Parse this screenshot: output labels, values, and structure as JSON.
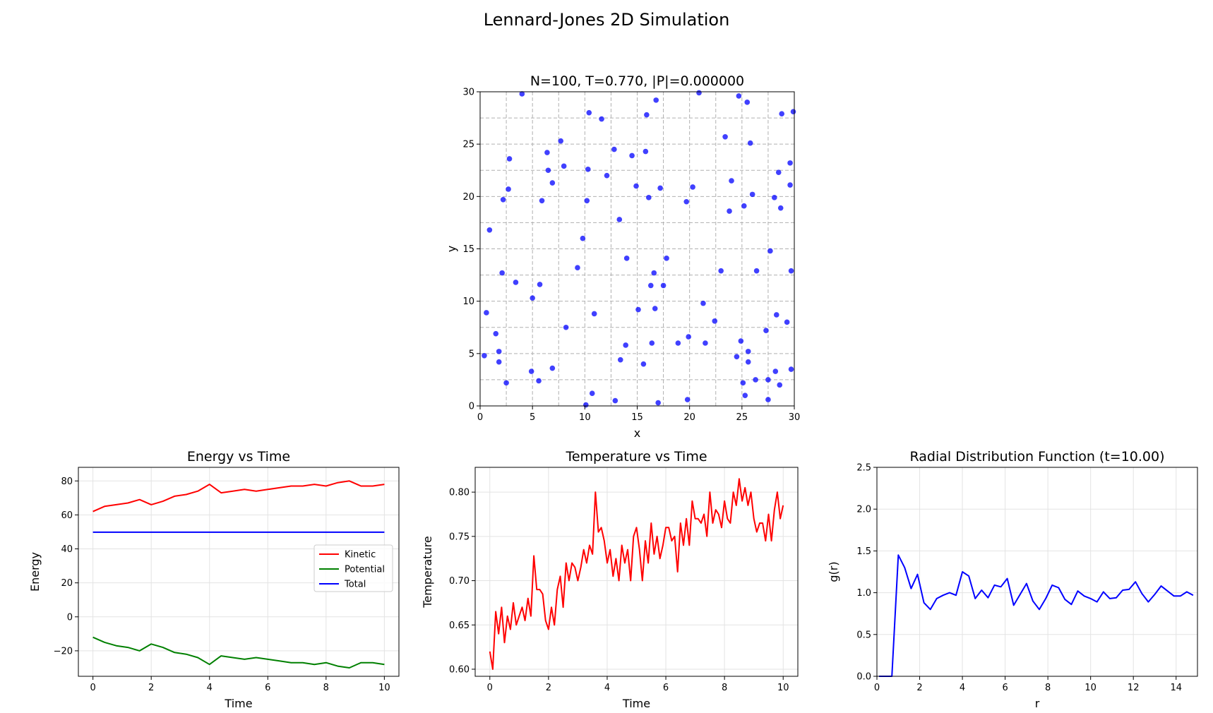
{
  "figure": {
    "suptitle": "Lennard-Jones 2D Simulation"
  },
  "chart_data": [
    {
      "type": "scatter",
      "title": "N=100, T=0.770, |P|=0.000000",
      "xlabel": "x",
      "ylabel": "y",
      "xlim": [
        0,
        30
      ],
      "ylim": [
        0,
        30
      ],
      "xticks": [
        0,
        5,
        10,
        15,
        20,
        25,
        30
      ],
      "yticks": [
        0,
        5,
        10,
        15,
        20,
        25,
        30
      ],
      "grid": "dashed at 2.5 intervals",
      "marker_color": "#0000ff",
      "points": [
        [
          0.4,
          4.8
        ],
        [
          0.6,
          8.9
        ],
        [
          0.9,
          16.8
        ],
        [
          1.5,
          6.9
        ],
        [
          1.8,
          5.2
        ],
        [
          1.8,
          4.2
        ],
        [
          2.1,
          12.7
        ],
        [
          2.2,
          19.7
        ],
        [
          2.5,
          2.2
        ],
        [
          2.7,
          20.7
        ],
        [
          2.8,
          23.6
        ],
        [
          3.4,
          11.8
        ],
        [
          4.0,
          29.8
        ],
        [
          4.9,
          3.3
        ],
        [
          5.0,
          10.3
        ],
        [
          5.6,
          2.4
        ],
        [
          5.7,
          11.6
        ],
        [
          5.9,
          19.6
        ],
        [
          6.4,
          24.2
        ],
        [
          6.5,
          22.5
        ],
        [
          6.9,
          3.6
        ],
        [
          6.9,
          21.3
        ],
        [
          7.7,
          25.3
        ],
        [
          8.0,
          22.9
        ],
        [
          8.2,
          7.5
        ],
        [
          9.3,
          13.2
        ],
        [
          9.8,
          16.0
        ],
        [
          10.1,
          0.1
        ],
        [
          10.3,
          22.6
        ],
        [
          10.2,
          19.6
        ],
        [
          10.4,
          28.0
        ],
        [
          10.7,
          1.2
        ],
        [
          10.9,
          8.8
        ],
        [
          11.6,
          27.4
        ],
        [
          12.1,
          22.0
        ],
        [
          12.8,
          24.5
        ],
        [
          12.9,
          0.5
        ],
        [
          13.3,
          17.8
        ],
        [
          13.4,
          4.4
        ],
        [
          13.9,
          5.8
        ],
        [
          14.0,
          14.1
        ],
        [
          14.5,
          23.9
        ],
        [
          14.9,
          21.0
        ],
        [
          15.1,
          9.2
        ],
        [
          15.6,
          4.0
        ],
        [
          15.8,
          24.3
        ],
        [
          15.9,
          27.8
        ],
        [
          16.1,
          19.9
        ],
        [
          16.3,
          11.5
        ],
        [
          16.4,
          6.0
        ],
        [
          16.6,
          12.7
        ],
        [
          16.7,
          9.3
        ],
        [
          16.8,
          29.2
        ],
        [
          17.0,
          0.3
        ],
        [
          17.2,
          20.8
        ],
        [
          17.5,
          11.5
        ],
        [
          17.8,
          14.1
        ],
        [
          18.9,
          6.0
        ],
        [
          19.7,
          19.5
        ],
        [
          19.8,
          0.6
        ],
        [
          19.9,
          6.6
        ],
        [
          20.3,
          20.9
        ],
        [
          20.9,
          29.9
        ],
        [
          21.3,
          9.8
        ],
        [
          21.5,
          6.0
        ],
        [
          22.4,
          8.1
        ],
        [
          23.0,
          12.9
        ],
        [
          23.4,
          25.7
        ],
        [
          23.8,
          18.6
        ],
        [
          24.0,
          21.5
        ],
        [
          24.5,
          4.7
        ],
        [
          24.7,
          29.6
        ],
        [
          24.9,
          6.2
        ],
        [
          25.1,
          2.2
        ],
        [
          25.2,
          19.1
        ],
        [
          25.3,
          1.0
        ],
        [
          25.5,
          29.0
        ],
        [
          25.6,
          5.2
        ],
        [
          25.6,
          4.2
        ],
        [
          25.8,
          25.1
        ],
        [
          26.0,
          20.2
        ],
        [
          26.3,
          2.5
        ],
        [
          26.4,
          12.9
        ],
        [
          27.3,
          7.2
        ],
        [
          27.5,
          2.5
        ],
        [
          27.5,
          0.6
        ],
        [
          27.7,
          14.8
        ],
        [
          28.1,
          19.9
        ],
        [
          28.2,
          3.3
        ],
        [
          28.3,
          8.7
        ],
        [
          28.5,
          22.3
        ],
        [
          28.6,
          2.0
        ],
        [
          28.7,
          18.9
        ],
        [
          28.8,
          27.9
        ],
        [
          29.3,
          8.0
        ],
        [
          29.6,
          21.1
        ],
        [
          29.6,
          23.2
        ],
        [
          29.7,
          3.5
        ],
        [
          29.7,
          12.9
        ],
        [
          29.9,
          28.1
        ]
      ]
    },
    {
      "type": "line",
      "title": "Energy vs Time",
      "xlabel": "Time",
      "ylabel": "Energy",
      "xlim": [
        -0.5,
        10.5
      ],
      "ylim": [
        -35,
        88
      ],
      "xticks": [
        0,
        2,
        4,
        6,
        8,
        10
      ],
      "yticks": [
        -20,
        0,
        20,
        40,
        60,
        80
      ],
      "ytick_labels": [
        "−20",
        "0",
        "20",
        "40",
        "60",
        "80"
      ],
      "grid": true,
      "legend": "center-right",
      "x": [
        0,
        0.4,
        0.8,
        1.2,
        1.6,
        2.0,
        2.4,
        2.8,
        3.2,
        3.6,
        4.0,
        4.4,
        4.8,
        5.2,
        5.6,
        6.0,
        6.4,
        6.8,
        7.2,
        7.6,
        8.0,
        8.4,
        8.8,
        9.2,
        9.6,
        10.0
      ],
      "series": [
        {
          "name": "Kinetic",
          "color": "#ff0000",
          "values": [
            62,
            65,
            66,
            67,
            69,
            66,
            68,
            71,
            72,
            74,
            78,
            73,
            74,
            75,
            74,
            75,
            76,
            77,
            77,
            78,
            77,
            79,
            80,
            77,
            77,
            78
          ]
        },
        {
          "name": "Potential",
          "color": "#008000",
          "values": [
            -12,
            -15,
            -17,
            -18,
            -20,
            -16,
            -18,
            -21,
            -22,
            -24,
            -28,
            -23,
            -24,
            -25,
            -24,
            -25,
            -26,
            -27,
            -27,
            -28,
            -27,
            -29,
            -30,
            -27,
            -27,
            -28
          ]
        },
        {
          "name": "Total",
          "color": "#0000ff",
          "values": [
            49.8,
            49.8,
            49.8,
            49.8,
            49.8,
            49.8,
            49.8,
            49.8,
            49.8,
            49.8,
            49.8,
            49.8,
            49.8,
            49.8,
            49.8,
            49.8,
            49.8,
            49.8,
            49.8,
            49.8,
            49.8,
            49.8,
            49.8,
            49.8,
            49.8,
            49.8
          ]
        }
      ]
    },
    {
      "type": "line",
      "title": "Temperature vs Time",
      "xlabel": "Time",
      "ylabel": "Temperature",
      "xlim": [
        -0.5,
        10.5
      ],
      "ylim": [
        0.592,
        0.828
      ],
      "xticks": [
        0,
        2,
        4,
        6,
        8,
        10
      ],
      "yticks": [
        0.6,
        0.65,
        0.7,
        0.75,
        0.8
      ],
      "ytick_labels": [
        "0.60",
        "0.65",
        "0.70",
        "0.75",
        "0.80"
      ],
      "grid": true,
      "x": [
        0,
        0.1,
        0.2,
        0.3,
        0.4,
        0.5,
        0.6,
        0.7,
        0.8,
        0.9,
        1.0,
        1.1,
        1.2,
        1.3,
        1.4,
        1.5,
        1.6,
        1.7,
        1.8,
        1.9,
        2.0,
        2.1,
        2.2,
        2.3,
        2.4,
        2.5,
        2.6,
        2.7,
        2.8,
        2.9,
        3.0,
        3.1,
        3.2,
        3.3,
        3.4,
        3.5,
        3.6,
        3.7,
        3.8,
        3.9,
        4.0,
        4.1,
        4.2,
        4.3,
        4.4,
        4.5,
        4.6,
        4.7,
        4.8,
        4.9,
        5.0,
        5.1,
        5.2,
        5.3,
        5.4,
        5.5,
        5.6,
        5.7,
        5.8,
        5.9,
        6.0,
        6.1,
        6.2,
        6.3,
        6.4,
        6.5,
        6.6,
        6.7,
        6.8,
        6.9,
        7.0,
        7.1,
        7.2,
        7.3,
        7.4,
        7.5,
        7.6,
        7.7,
        7.8,
        7.9,
        8.0,
        8.1,
        8.2,
        8.3,
        8.4,
        8.5,
        8.6,
        8.7,
        8.8,
        8.9,
        9.0,
        9.1,
        9.2,
        9.3,
        9.4,
        9.5,
        9.6,
        9.7,
        9.8,
        9.9,
        10.0
      ],
      "series": [
        {
          "name": "",
          "color": "#ff0000",
          "values": [
            0.62,
            0.6,
            0.665,
            0.64,
            0.67,
            0.63,
            0.66,
            0.645,
            0.675,
            0.65,
            0.66,
            0.67,
            0.655,
            0.68,
            0.66,
            0.728,
            0.69,
            0.69,
            0.685,
            0.655,
            0.645,
            0.67,
            0.65,
            0.69,
            0.705,
            0.67,
            0.72,
            0.7,
            0.72,
            0.715,
            0.7,
            0.715,
            0.735,
            0.72,
            0.74,
            0.73,
            0.8,
            0.755,
            0.76,
            0.745,
            0.72,
            0.735,
            0.705,
            0.725,
            0.7,
            0.74,
            0.72,
            0.735,
            0.7,
            0.75,
            0.76,
            0.735,
            0.7,
            0.745,
            0.72,
            0.765,
            0.73,
            0.75,
            0.725,
            0.74,
            0.76,
            0.76,
            0.745,
            0.75,
            0.71,
            0.765,
            0.74,
            0.77,
            0.74,
            0.79,
            0.77,
            0.77,
            0.765,
            0.775,
            0.75,
            0.8,
            0.765,
            0.78,
            0.775,
            0.76,
            0.79,
            0.77,
            0.765,
            0.8,
            0.785,
            0.815,
            0.79,
            0.805,
            0.785,
            0.8,
            0.77,
            0.755,
            0.765,
            0.765,
            0.745,
            0.775,
            0.745,
            0.78,
            0.8,
            0.77,
            0.785
          ]
        }
      ]
    },
    {
      "type": "line",
      "title": "Radial Distribution Function (t=10.00)",
      "xlabel": "r",
      "ylabel": "g(r)",
      "xlim": [
        0,
        15
      ],
      "ylim": [
        0,
        2.5
      ],
      "xticks": [
        0,
        2,
        4,
        6,
        8,
        10,
        12,
        14
      ],
      "yticks": [
        0,
        0.5,
        1.0,
        1.5,
        2.0,
        2.5
      ],
      "ytick_labels": [
        "0.0",
        "0.5",
        "1.0",
        "1.5",
        "2.0",
        "2.5"
      ],
      "grid": true,
      "x": [
        0.1,
        0.4,
        0.7,
        1.0,
        1.3,
        1.6,
        1.9,
        2.2,
        2.5,
        2.8,
        3.1,
        3.4,
        3.7,
        4.0,
        4.3,
        4.6,
        4.9,
        5.2,
        5.5,
        5.8,
        6.1,
        6.4,
        6.7,
        7.0,
        7.3,
        7.6,
        7.9,
        8.2,
        8.5,
        8.8,
        9.1,
        9.4,
        9.7,
        10.0,
        10.3,
        10.6,
        10.9,
        11.2,
        11.5,
        11.8,
        12.1,
        12.4,
        12.7,
        13.0,
        13.3,
        13.6,
        13.9,
        14.2,
        14.5,
        14.8
      ],
      "series": [
        {
          "name": "",
          "color": "#0000ff",
          "values": [
            0,
            0,
            0,
            1.45,
            1.3,
            1.05,
            1.22,
            0.88,
            0.8,
            0.93,
            0.97,
            1.0,
            0.97,
            1.25,
            1.2,
            0.93,
            1.03,
            0.94,
            1.09,
            1.07,
            1.17,
            0.85,
            0.98,
            1.11,
            0.9,
            0.8,
            0.93,
            1.09,
            1.06,
            0.92,
            0.86,
            1.02,
            0.96,
            0.93,
            0.89,
            1.01,
            0.93,
            0.94,
            1.03,
            1.04,
            1.13,
            0.99,
            0.89,
            0.98,
            1.08,
            1.02,
            0.96,
            0.96,
            1.01,
            0.97
          ]
        }
      ]
    }
  ]
}
